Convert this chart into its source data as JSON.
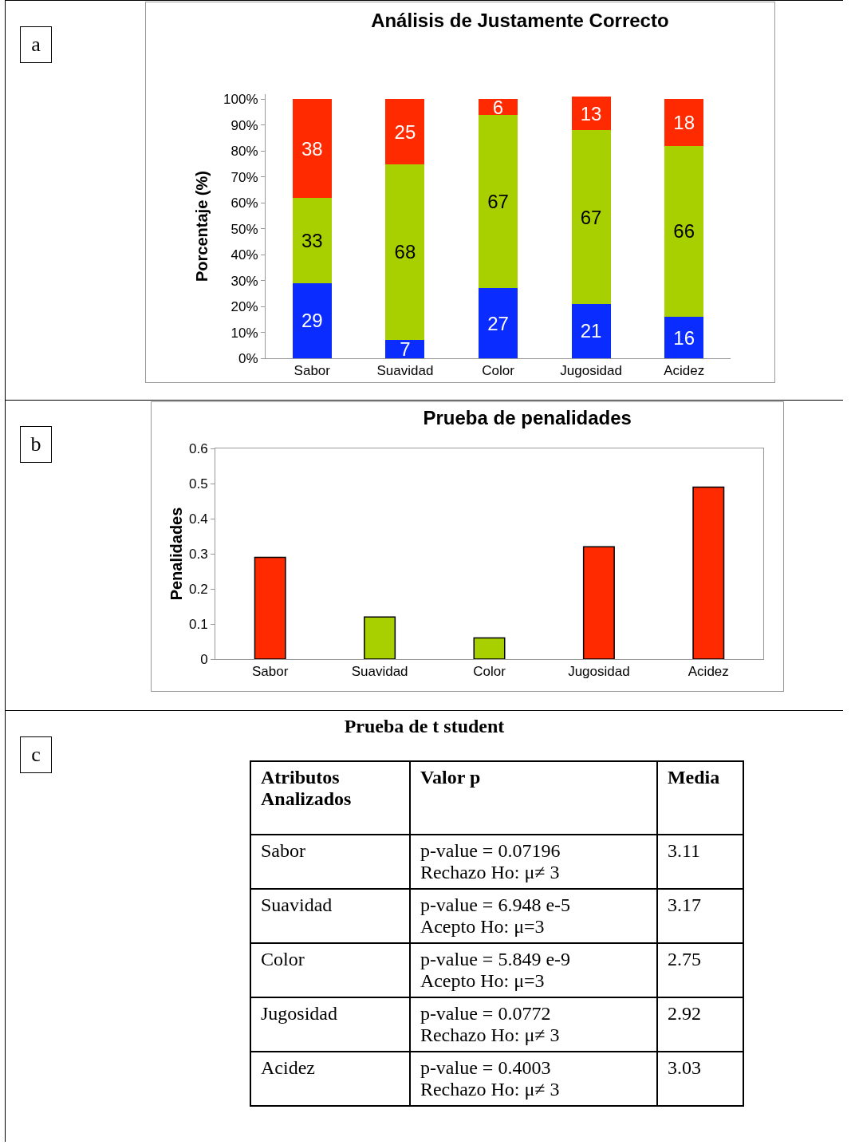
{
  "chart_data": [
    {
      "type": "bar",
      "title": "Análisis de Justamente Correcto",
      "ylabel": "Porcentaje (%)",
      "annotations": [
        "a"
      ],
      "stacked": true,
      "data_labels": true,
      "categories": [
        "Sabor",
        "Suavidad",
        "Color",
        "Jugosidad",
        "Acidez"
      ],
      "series": [
        {
          "color": "#0a2cff",
          "values": [
            29,
            7,
            27,
            21,
            16
          ]
        },
        {
          "color": "#a8d000",
          "values": [
            33,
            68,
            67,
            67,
            66
          ]
        },
        {
          "color": "#ff2a00",
          "values": [
            38,
            25,
            6,
            13,
            18
          ]
        }
      ],
      "ylim": [
        0,
        102
      ],
      "yticks": [
        {
          "value": 0,
          "label": "0%"
        },
        {
          "value": 10,
          "label": "10%"
        },
        {
          "value": 20,
          "label": "20%"
        },
        {
          "value": 30,
          "label": "30%"
        },
        {
          "value": 40,
          "label": "40%"
        },
        {
          "value": 50,
          "label": "50%"
        },
        {
          "value": 60,
          "label": "60%"
        },
        {
          "value": 70,
          "label": "70%"
        },
        {
          "value": 80,
          "label": "80%"
        },
        {
          "value": 90,
          "label": "90%"
        },
        {
          "value": 100,
          "label": "100%"
        }
      ],
      "grid": false
    },
    {
      "type": "bar",
      "title": "Prueba de penalidades",
      "ylabel": "Penalidades",
      "annotations": [
        "b"
      ],
      "categories": [
        "Sabor",
        "Suavidad",
        "Color",
        "Jugosidad",
        "Acidez"
      ],
      "values": [
        0.29,
        0.12,
        0.06,
        0.32,
        0.49
      ],
      "colors": [
        "#ff2a00",
        "#a8d000",
        "#a8d000",
        "#ff2a00",
        "#ff2a00"
      ],
      "ylim": [
        0,
        0.6
      ],
      "yticks": [
        0,
        0.1,
        0.2,
        0.3,
        0.4,
        0.5,
        0.6
      ],
      "grid": false
    },
    {
      "type": "other",
      "title": "Prueba de t student",
      "annotations": [
        "c",
        "Atributos Analizados",
        "Valor p",
        "Media",
        "Sabor",
        "p-value = 0.07196\nRechazo Ho: μ≠ 3",
        "3.11",
        "Suavidad",
        "p-value = 6.948 e-5\nAcepto Ho: μ=3",
        "3.17",
        "Color",
        "p-value = 5.849 e-9\nAcepto Ho: μ=3",
        "2.75",
        "Jugosidad",
        "p-value = 0.0772\nRechazo Ho: μ≠ 3",
        "2.92",
        "Acidez",
        "p-value = 0.4003\nRechazo Ho: μ≠ 3",
        "3.03"
      ]
    }
  ]
}
